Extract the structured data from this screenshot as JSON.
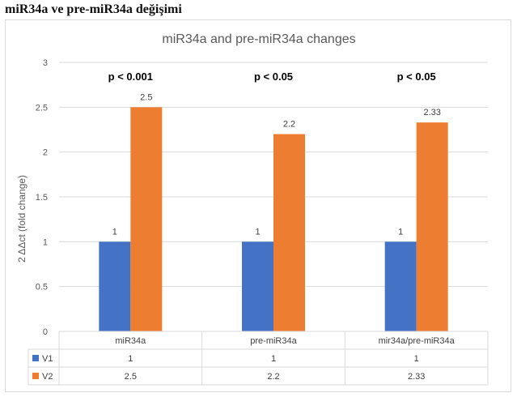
{
  "document": {
    "heading": "miR34a ve pre-miR34a değişimi"
  },
  "chart_data": {
    "type": "bar",
    "title": "miR34a and pre-miR34a changes",
    "ylabel": "2 ΔΔct (fold change)",
    "xlabel": "",
    "ylim": [
      0,
      3
    ],
    "yticks": [
      "0",
      "0.5",
      "1",
      "1.5",
      "2",
      "2.5",
      "3"
    ],
    "grid": true,
    "categories": [
      "miR34a",
      "pre-miR34a",
      "mir34a/pre-miR34a"
    ],
    "series": [
      {
        "name": "V1",
        "values": [
          1,
          1,
          1
        ],
        "labels": [
          "1",
          "1",
          "1"
        ],
        "color": "#4472c4"
      },
      {
        "name": "V2",
        "values": [
          2.5,
          2.2,
          2.33
        ],
        "labels": [
          "2.5",
          "2.2",
          "2.33"
        ],
        "color": "#ed7d31"
      }
    ],
    "annotations": [
      "p < 0.001",
      "p < 0.05",
      "p < 0.05"
    ],
    "legend": "data-table-below"
  }
}
